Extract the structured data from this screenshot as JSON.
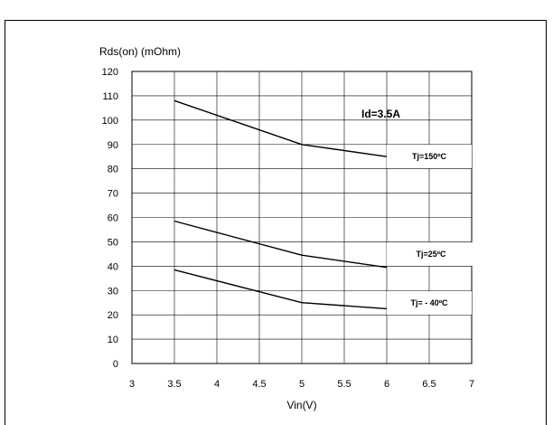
{
  "chart_data": {
    "type": "line",
    "title": "",
    "ylabel": "Rds(on) (mOhm)",
    "xlabel": "Vin(V)",
    "xlim": [
      3,
      7
    ],
    "ylim": [
      0,
      120
    ],
    "x_ticks": [
      3,
      3.5,
      4,
      4.5,
      5,
      5.5,
      6,
      6.5,
      7
    ],
    "x_tick_labels": [
      "3",
      "3.5",
      "4",
      "4.5",
      "5",
      "5.5",
      "6",
      "6.5",
      "7"
    ],
    "y_ticks": [
      0,
      10,
      20,
      30,
      40,
      50,
      60,
      70,
      80,
      90,
      100,
      110,
      120
    ],
    "y_tick_labels": [
      "0",
      "10",
      "20",
      "30",
      "40",
      "50",
      "60",
      "70",
      "80",
      "90",
      "100",
      "110",
      "120"
    ],
    "grid": true,
    "annotation": "Id=3.5A",
    "series": [
      {
        "name": "Tj=150ºC",
        "x": [
          3.5,
          5,
          6
        ],
        "values": [
          108,
          90,
          85
        ]
      },
      {
        "name": "Tj=25ºC",
        "x": [
          3.5,
          5,
          6
        ],
        "values": [
          58.5,
          44.5,
          39.5
        ]
      },
      {
        "name": "Tj= - 40ºC",
        "x": [
          3.5,
          5,
          6
        ],
        "values": [
          38.5,
          25,
          22.5
        ]
      }
    ],
    "colors": {
      "line": "#000000",
      "grid": "#000000",
      "plot_bg": "#ffffff"
    }
  }
}
